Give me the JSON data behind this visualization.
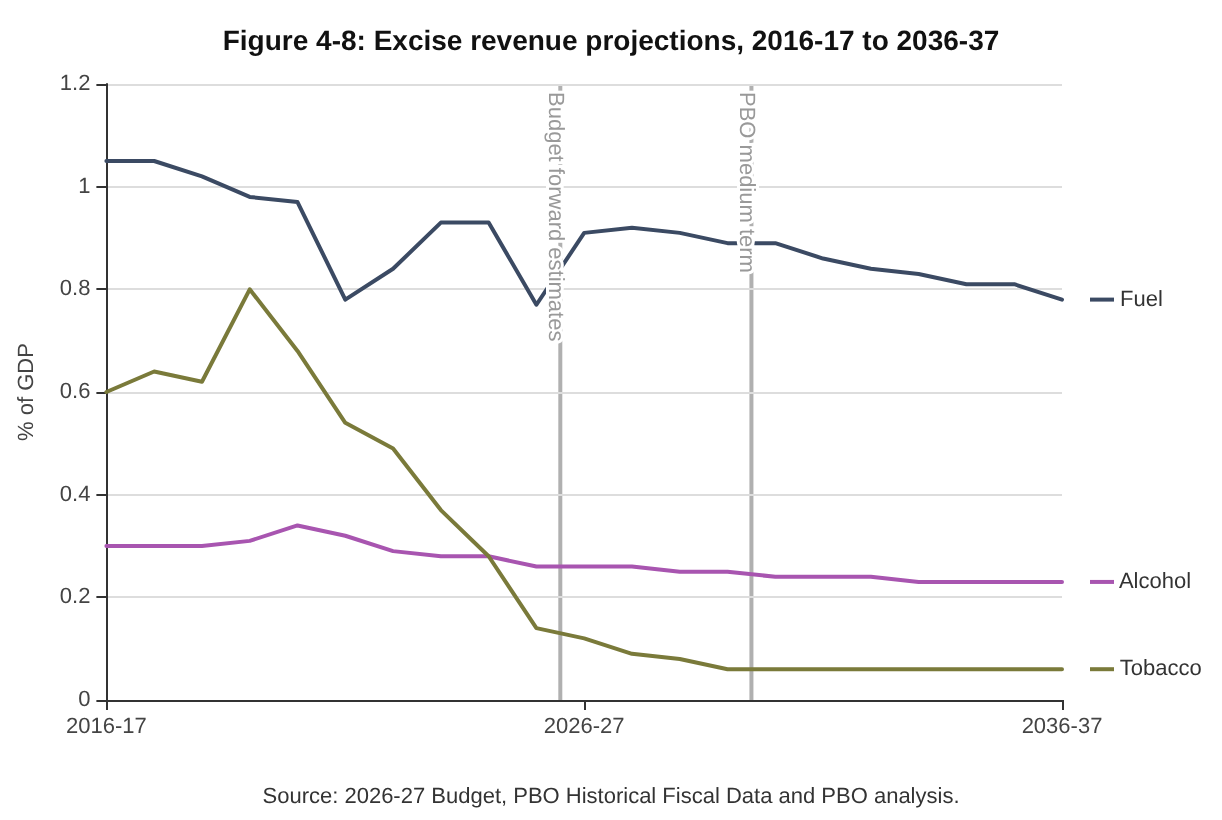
{
  "chart_data": {
    "type": "line",
    "title": "Figure 4-8: Excise revenue projections, 2016-17 to 2036-37",
    "ylabel": "% of GDP",
    "categories": [
      "2016-17",
      null,
      null,
      null,
      null,
      null,
      null,
      null,
      null,
      null,
      "2026-27",
      null,
      null,
      null,
      null,
      null,
      null,
      null,
      null,
      null,
      "2036-37"
    ],
    "ylim": [
      0,
      1.2
    ],
    "yticks": [
      0,
      0.2,
      0.4,
      0.6,
      0.8,
      1,
      1.2
    ],
    "grid": "y",
    "legend": "right",
    "marker": "none",
    "line_style": "solid",
    "series": [
      {
        "name": "Fuel",
        "color": "#3b4a63",
        "values": [
          1.05,
          1.05,
          1.02,
          0.98,
          0.97,
          0.78,
          0.84,
          0.93,
          0.93,
          0.77,
          0.91,
          0.92,
          0.91,
          0.89,
          0.89,
          0.86,
          0.84,
          0.83,
          0.81,
          0.81,
          0.78
        ]
      },
      {
        "name": "Alcohol",
        "color": "#a855b0",
        "values": [
          0.3,
          0.3,
          0.3,
          0.31,
          0.34,
          0.32,
          0.29,
          0.28,
          0.28,
          0.26,
          0.26,
          0.26,
          0.25,
          0.25,
          0.24,
          0.24,
          0.24,
          0.23,
          0.23,
          0.23,
          0.23
        ]
      },
      {
        "name": "Tobacco",
        "color": "#7a7a3a",
        "values": [
          0.6,
          0.64,
          0.62,
          0.8,
          0.68,
          0.54,
          0.49,
          0.37,
          0.28,
          0.14,
          0.12,
          0.09,
          0.08,
          0.06,
          0.06,
          0.06,
          0.06,
          0.06,
          0.06,
          0.06,
          0.06
        ]
      }
    ],
    "ref_lines": [
      {
        "axis": "x",
        "label": "Budget forward estimates",
        "color": "#b0b0b0"
      },
      {
        "axis": "x",
        "label": "PBO medium term",
        "color": "#b0b0b0"
      }
    ],
    "annotations": [
      "Source: 2026-27 Budget, PBO Historical Fiscal Data and PBO analysis."
    ]
  }
}
